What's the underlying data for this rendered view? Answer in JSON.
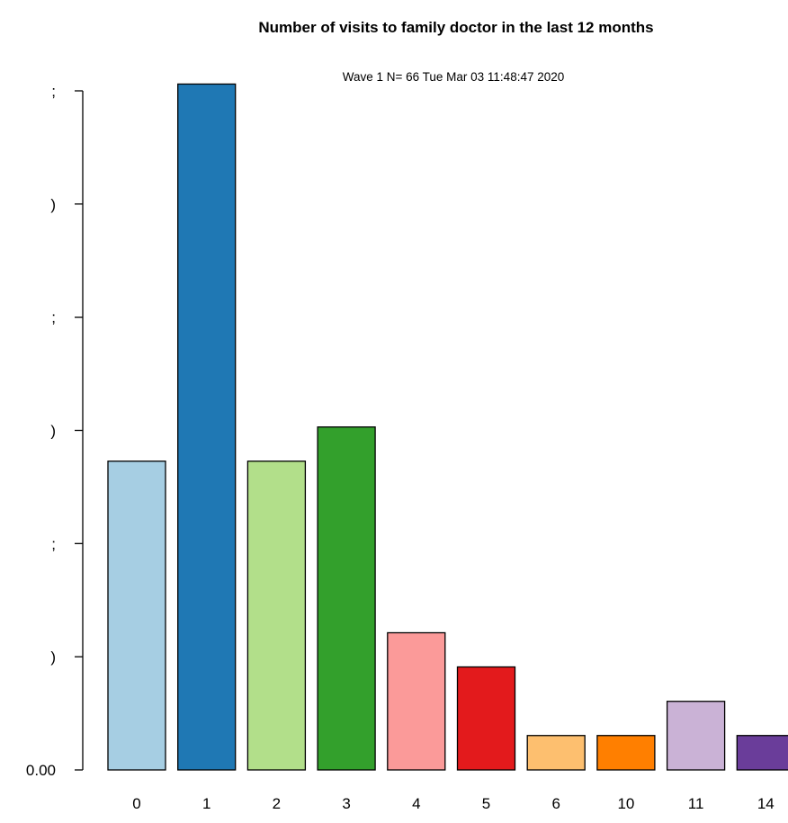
{
  "chart_data": {
    "type": "bar",
    "title": "Number of visits to family doctor in the last 12 months",
    "subtitle": "Wave 1 N= 66 Tue Mar 03 11:48:47 2020",
    "xlabel": "",
    "ylabel": "",
    "categories": [
      "0",
      "1",
      "2",
      "3",
      "4",
      "5",
      "6",
      "10",
      "11",
      "14"
    ],
    "values": [
      0.1364,
      0.303,
      0.1364,
      0.1515,
      0.0606,
      0.0455,
      0.0152,
      0.0152,
      0.0303,
      0.0152
    ],
    "colors": [
      "#a6cee3",
      "#1f78b4",
      "#b2df8a",
      "#33a02c",
      "#fb9a99",
      "#e31a1c",
      "#fdbf6f",
      "#ff7f00",
      "#cab2d6",
      "#6a3d9a"
    ],
    "ylim": [
      0,
      0.3
    ],
    "y_ticks": [
      0.0,
      0.05,
      0.1,
      0.15,
      0.2,
      0.25,
      0.3
    ],
    "y_tick_labels": [
      "0.00",
      ")",
      ";",
      ")",
      ";",
      ")",
      ";"
    ],
    "grid": false,
    "legend": "none"
  }
}
